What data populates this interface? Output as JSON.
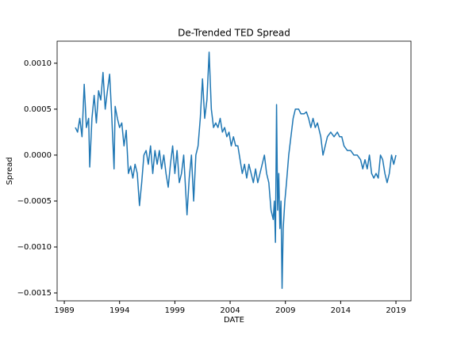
{
  "chart_data": {
    "type": "line",
    "title": "De-Trended TED Spread",
    "xlabel": "DATE",
    "ylabel": "Spread",
    "xlim": [
      1988.35,
      2020.36
    ],
    "xticks": [
      1989,
      1994,
      1999,
      2004,
      2009,
      2014,
      2019
    ],
    "ylim": [
      -0.001586,
      0.00124
    ],
    "yticks": [
      {
        "value": -0.0015,
        "label": "−0.0015"
      },
      {
        "value": -0.001,
        "label": "−0.0010"
      },
      {
        "value": -0.0005,
        "label": "−0.0005"
      },
      {
        "value": 0,
        "label": "0.0000"
      },
      {
        "value": 0.0005,
        "label": "0.0005"
      },
      {
        "value": 0.001,
        "label": "0.0010"
      }
    ],
    "series": [
      {
        "color": "#1f77b4",
        "x": [
          1990.0,
          1990.2,
          1990.4,
          1990.6,
          1990.8,
          1991.0,
          1991.2,
          1991.3,
          1991.5,
          1991.7,
          1991.9,
          1992.1,
          1992.3,
          1992.5,
          1992.7,
          1992.9,
          1993.1,
          1993.3,
          1993.5,
          1993.6,
          1993.8,
          1994.0,
          1994.2,
          1994.4,
          1994.6,
          1994.8,
          1995.0,
          1995.2,
          1995.4,
          1995.6,
          1995.8,
          1996.0,
          1996.2,
          1996.4,
          1996.6,
          1996.8,
          1997.0,
          1997.2,
          1997.4,
          1997.6,
          1997.8,
          1998.0,
          1998.2,
          1998.4,
          1998.6,
          1998.8,
          1999.0,
          1999.2,
          1999.4,
          1999.6,
          1999.8,
          2000.1,
          2000.3,
          2000.5,
          2000.7,
          2000.9,
          2001.1,
          2001.3,
          2001.5,
          2001.7,
          2001.9,
          2002.1,
          2002.3,
          2002.5,
          2002.7,
          2002.9,
          2003.1,
          2003.3,
          2003.5,
          2003.7,
          2003.9,
          2004.1,
          2004.3,
          2004.5,
          2004.7,
          2004.9,
          2005.1,
          2005.3,
          2005.5,
          2005.7,
          2005.9,
          2006.1,
          2006.3,
          2006.5,
          2006.7,
          2006.9,
          2007.1,
          2007.3,
          2007.5,
          2007.7,
          2007.9,
          2008.0,
          2008.1,
          2008.2,
          2008.3,
          2008.4,
          2008.5,
          2008.6,
          2008.7,
          2008.8,
          2008.95,
          2009.1,
          2009.3,
          2009.5,
          2009.7,
          2009.9,
          2010.2,
          2010.4,
          2010.7,
          2010.9,
          2011.1,
          2011.3,
          2011.5,
          2011.7,
          2011.9,
          2012.2,
          2012.4,
          2012.6,
          2012.8,
          2013.1,
          2013.4,
          2013.7,
          2013.9,
          2014.1,
          2014.3,
          2014.6,
          2014.9,
          2015.2,
          2015.5,
          2015.8,
          2016.0,
          2016.2,
          2016.4,
          2016.6,
          2016.8,
          2017.0,
          2017.2,
          2017.4,
          2017.6,
          2017.8,
          2018.0,
          2018.2,
          2018.4,
          2018.6,
          2018.8,
          2019.0
        ],
        "values": [
          0.0003,
          0.00025,
          0.0004,
          0.0002,
          0.00077,
          0.0003,
          0.0004,
          -0.00013,
          0.0004,
          0.00065,
          0.00035,
          0.0007,
          0.0006,
          0.0009,
          0.0005,
          0.0007,
          0.00088,
          0.0004,
          -0.00015,
          0.00053,
          0.0004,
          0.0003,
          0.00035,
          0.0001,
          0.00027,
          -0.0002,
          -0.00012,
          -0.00025,
          -0.0001,
          -0.0002,
          -0.00055,
          -0.0003,
          0.0,
          5e-05,
          -0.0001,
          0.0001,
          -0.0002,
          5e-05,
          -0.0001,
          5e-05,
          -0.00015,
          0.0,
          -0.0002,
          -0.00035,
          -0.0001,
          0.0001,
          -0.0002,
          5e-05,
          -0.0003,
          -0.0002,
          0.0,
          -0.00065,
          -0.00025,
          0.0,
          -0.0005,
          0.0,
          0.0001,
          0.0004,
          0.00083,
          0.0004,
          0.0006,
          0.00112,
          0.0005,
          0.0003,
          0.00035,
          0.0003,
          0.0004,
          0.00025,
          0.0003,
          0.0002,
          0.00025,
          0.0001,
          0.0002,
          0.0001,
          0.0001,
          -5e-05,
          -0.0002,
          -0.0001,
          -0.00025,
          -0.0001,
          -0.0002,
          -0.0003,
          -0.00015,
          -0.0003,
          -0.0002,
          -0.0001,
          0.0,
          -0.0002,
          -0.0003,
          -0.0006,
          -0.0007,
          -0.0005,
          -0.00095,
          0.00055,
          -0.0006,
          -0.0002,
          -0.0008,
          -0.0005,
          -0.00145,
          -0.0008,
          -0.0005,
          -0.0003,
          0.0,
          0.0002,
          0.0004,
          0.0005,
          0.0005,
          0.00045,
          0.00045,
          0.00047,
          0.0004,
          0.0003,
          0.0004,
          0.0003,
          0.00035,
          0.0002,
          0.0,
          0.0001,
          0.0002,
          0.00025,
          0.0002,
          0.00025,
          0.0002,
          0.0002,
          0.0001,
          5e-05,
          5e-05,
          0.0,
          0.0,
          -5e-05,
          -0.00015,
          -5e-05,
          -0.00015,
          0.0,
          -0.0002,
          -0.00025,
          -0.0002,
          -0.00025,
          0.0,
          -5e-05,
          -0.0002,
          -0.0003,
          -0.0002,
          0.0,
          -0.0001,
          0.0
        ]
      }
    ]
  }
}
